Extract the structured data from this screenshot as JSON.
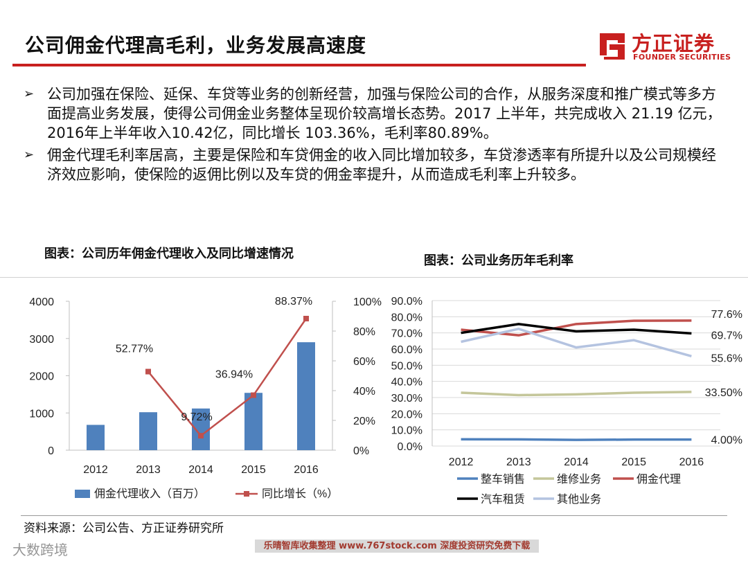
{
  "header": {
    "title": "公司佣金代理高毛利，业务发展高速度",
    "logo_cn": "方正证券",
    "logo_en": "FOUNDER SECURITIES"
  },
  "bullets": [
    "公司加强在保险、延保、车贷等业务的创新经营，加强与保险公司的合作，从服务深度和推广模式等多方面提高业务发展，使得公司佣金业务整体呈现价较高增长态势。2017 上半年，共完成收入 21.19 亿元，2016年上半年收入10.42亿，同比增长 103.36%，毛利率80.89%。",
    "佣金代理毛利率居高，主要是保险和车贷佣金的收入同比增加较多，车贷渗透率有所提升以及公司规模经济效应影响，使保险的返佣比例以及车贷的佣金率提升，从而造成毛利率上升较多。"
  ],
  "bullet_symbol": "➢",
  "captions": {
    "left": "图表：公司历年佣金代理收入及同比增速情况",
    "right": "图表：公司业务历年毛利率"
  },
  "source": "资料来源：公司公告、方正证券研究所",
  "footer": {
    "banner": "乐晴智库收集整理 www.767stock.com 深度投资研究免费下载",
    "watermark": "大数跨境"
  },
  "colors": {
    "brand_red": "#c8201f",
    "bar_blue": "#4f81bd",
    "growth_red": "#c0504d"
  },
  "chart_data": [
    {
      "type": "bar",
      "categories": [
        "2012",
        "2013",
        "2014",
        "2015",
        "2016"
      ],
      "series": [
        {
          "name": "佣金代理收入（百万）",
          "axis": "left",
          "type": "bar",
          "values": [
            680,
            1020,
            1120,
            1540,
            2900
          ]
        },
        {
          "name": "同比增长（%）",
          "axis": "right",
          "type": "line",
          "values": [
            null,
            52.77,
            9.72,
            36.94,
            88.37
          ]
        }
      ],
      "point_labels": [
        "",
        "52.77%",
        "9.72%",
        "36.94%",
        "88.37%"
      ],
      "y_left": {
        "min": 0,
        "max": 4000,
        "ticks": [
          "0",
          "1000",
          "2000",
          "3000",
          "4000"
        ]
      },
      "y_right": {
        "min": 0,
        "max": 100,
        "ticks": [
          "0%",
          "20%",
          "40%",
          "60%",
          "80%",
          "100%"
        ]
      },
      "legend": [
        "佣金代理收入（百万）",
        "同比增长（%）"
      ]
    },
    {
      "type": "line",
      "categories": [
        "2012",
        "2013",
        "2014",
        "2015",
        "2016"
      ],
      "series": [
        {
          "name": "整车销售",
          "color": "#4f81bd",
          "values": [
            4.2,
            4.1,
            3.8,
            4.0,
            4.0
          ]
        },
        {
          "name": "维修业务",
          "color": "#c4c69a",
          "values": [
            33.0,
            31.5,
            32.0,
            33.0,
            33.5
          ]
        },
        {
          "name": "佣金代理",
          "color": "#c0504d",
          "values": [
            72.0,
            68.5,
            75.5,
            77.5,
            77.6
          ]
        },
        {
          "name": "汽车租赁",
          "color": "#000000",
          "values": [
            70.0,
            75.5,
            71.0,
            72.0,
            69.7
          ]
        },
        {
          "name": "其他业务",
          "color": "#b4c3e0",
          "values": [
            64.5,
            72.5,
            61.0,
            65.5,
            55.6
          ]
        }
      ],
      "end_labels": [
        "4.00%",
        "33.50%",
        "77.6%",
        "69.7%",
        "55.6%"
      ],
      "y": {
        "min": 0,
        "max": 90,
        "ticks": [
          "0.0%",
          "10.0%",
          "20.0%",
          "30.0%",
          "40.0%",
          "50.0%",
          "60.0%",
          "70.0%",
          "80.0%",
          "90.0%"
        ]
      },
      "legend": [
        "整车销售",
        "维修业务",
        "佣金代理",
        "汽车租赁",
        "其他业务"
      ]
    }
  ]
}
